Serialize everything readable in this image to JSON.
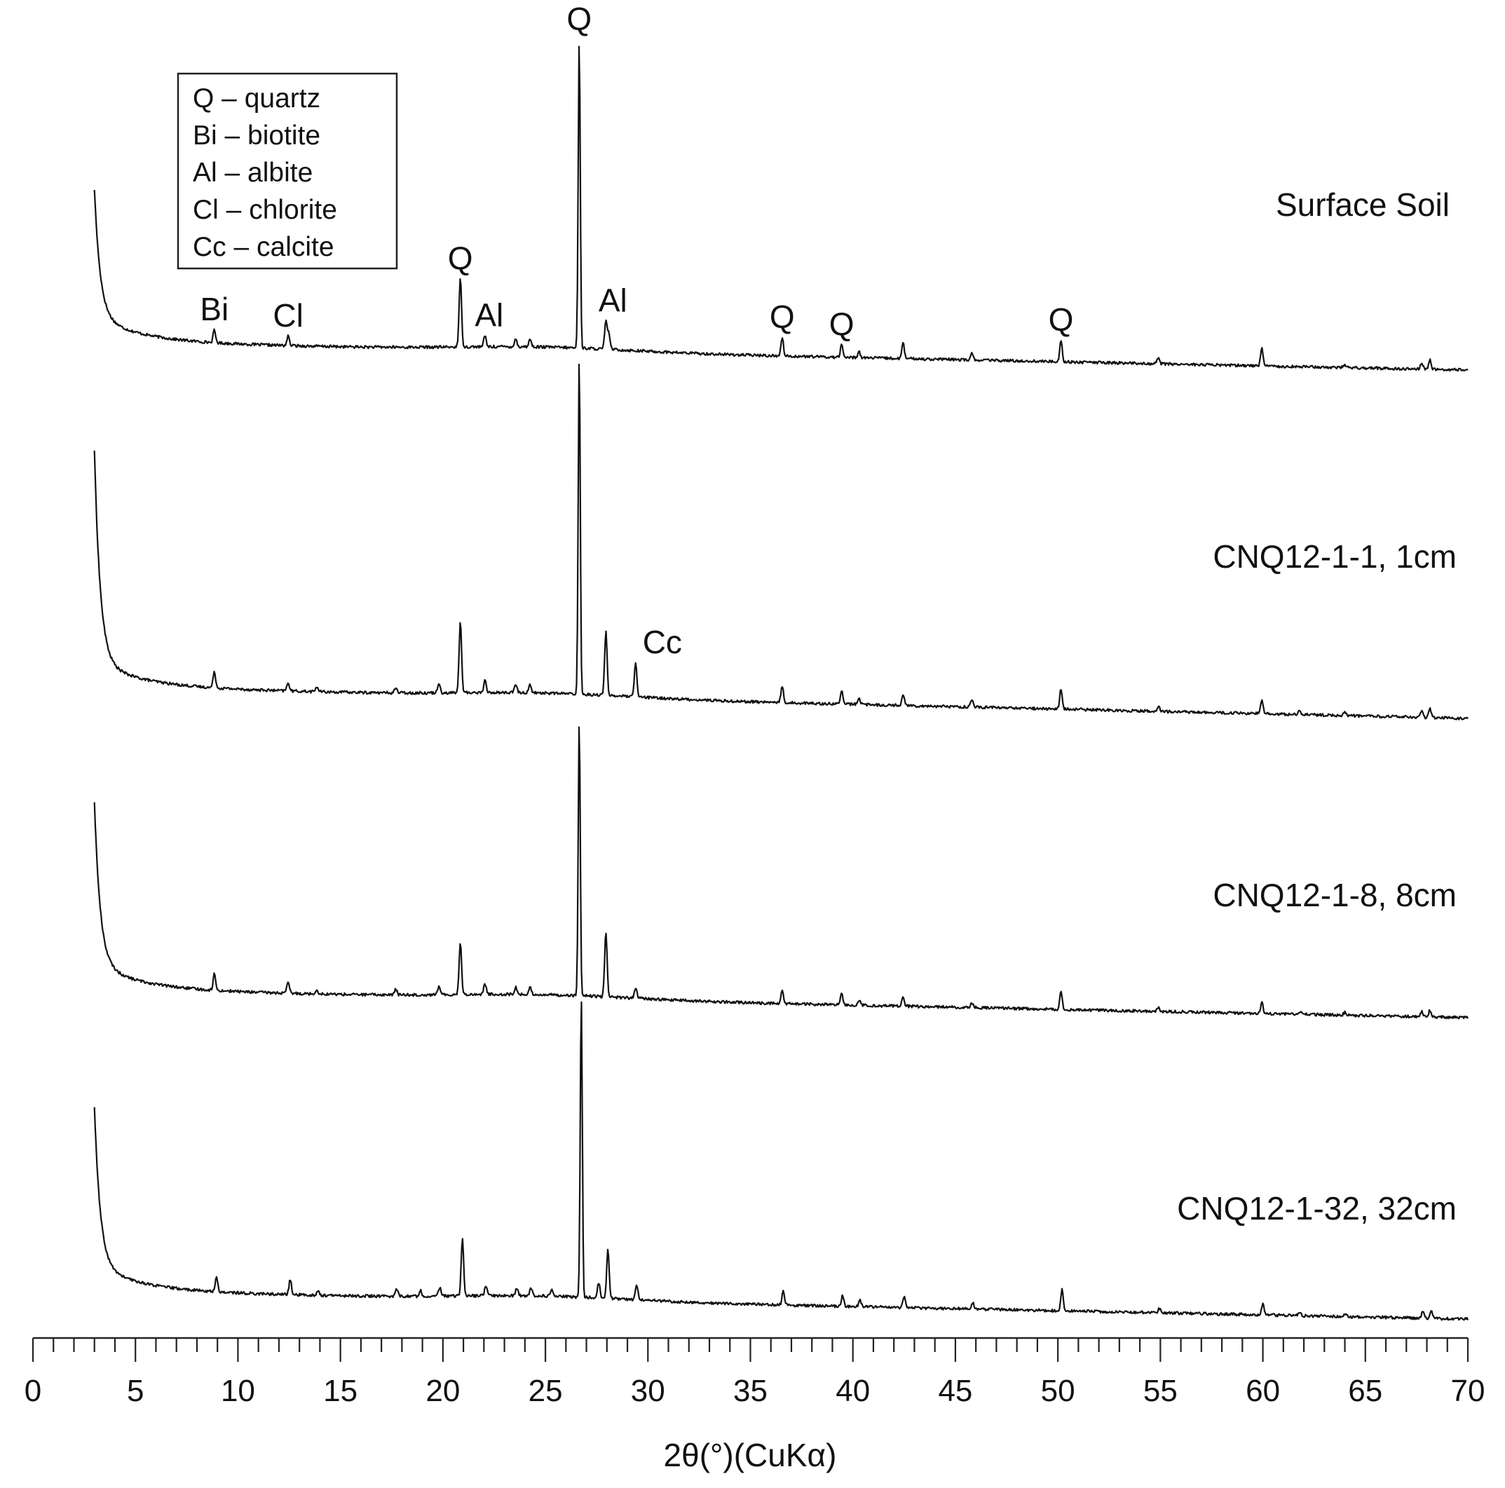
{
  "chart_data": {
    "type": "line",
    "title": "",
    "xlabel": "2θ(°)(CuKα)",
    "ylabel": "",
    "xlim": [
      0,
      70
    ],
    "x_ticks": [
      0,
      5,
      10,
      15,
      20,
      25,
      30,
      35,
      40,
      45,
      50,
      55,
      60,
      65,
      70
    ],
    "x_tick_labels": [
      "0",
      "5",
      "10",
      "15",
      "20",
      "25",
      "30",
      "35",
      "40",
      "45",
      "50",
      "55",
      "60",
      "65",
      "70"
    ],
    "minor_tick_step": 1,
    "grid": false,
    "legend": {
      "placement": "top-left",
      "entries": [
        "Q – quartz",
        "Bi – biotite",
        "Al – albite",
        "Cl – chlorite",
        "Cc – calcite"
      ]
    },
    "series": [
      {
        "name": "Surface Soil",
        "label": "Surface Soil",
        "peaks": [
          {
            "x": 26.65,
            "height": 100
          },
          {
            "x": 20.85,
            "height": 22
          },
          {
            "x": 27.95,
            "height": 9
          },
          {
            "x": 28.1,
            "height": 5
          },
          {
            "x": 8.85,
            "height": 4
          },
          {
            "x": 12.45,
            "height": 3
          },
          {
            "x": 22.05,
            "height": 3.5
          },
          {
            "x": 23.55,
            "height": 2.5
          },
          {
            "x": 24.25,
            "height": 2.5
          },
          {
            "x": 36.55,
            "height": 6
          },
          {
            "x": 39.45,
            "height": 4
          },
          {
            "x": 40.3,
            "height": 2
          },
          {
            "x": 42.45,
            "height": 5
          },
          {
            "x": 45.8,
            "height": 2
          },
          {
            "x": 50.15,
            "height": 7
          },
          {
            "x": 54.9,
            "height": 2
          },
          {
            "x": 59.95,
            "height": 6
          },
          {
            "x": 64.0,
            "height": 1
          },
          {
            "x": 67.75,
            "height": 2
          },
          {
            "x": 68.15,
            "height": 3
          }
        ],
        "annotations": [
          {
            "text": "Q",
            "x": 26.65
          },
          {
            "text": "Q",
            "x": 20.85
          },
          {
            "text": "Al",
            "x": 27.95
          },
          {
            "text": "Al",
            "x": 22.05
          },
          {
            "text": "Bi",
            "x": 8.85
          },
          {
            "text": "Cl",
            "x": 12.45
          },
          {
            "text": "Q",
            "x": 36.55
          },
          {
            "text": "Q",
            "x": 39.45
          },
          {
            "text": "Q",
            "x": 50.15
          }
        ]
      },
      {
        "name": "CNQ12-1-1, 1cm",
        "label": "CNQ12-1-1, 1cm",
        "peaks": [
          {
            "x": 26.65,
            "height": 100
          },
          {
            "x": 20.85,
            "height": 21
          },
          {
            "x": 27.95,
            "height": 19
          },
          {
            "x": 29.4,
            "height": 10
          },
          {
            "x": 8.85,
            "height": 5
          },
          {
            "x": 12.45,
            "height": 2.5
          },
          {
            "x": 13.85,
            "height": 1.5
          },
          {
            "x": 17.7,
            "height": 1.5
          },
          {
            "x": 19.8,
            "height": 3
          },
          {
            "x": 22.05,
            "height": 3.5
          },
          {
            "x": 23.55,
            "height": 2.5
          },
          {
            "x": 24.25,
            "height": 2.5
          },
          {
            "x": 36.55,
            "height": 5
          },
          {
            "x": 39.45,
            "height": 4
          },
          {
            "x": 40.3,
            "height": 2
          },
          {
            "x": 42.45,
            "height": 3.5
          },
          {
            "x": 45.8,
            "height": 2
          },
          {
            "x": 50.15,
            "height": 6
          },
          {
            "x": 54.9,
            "height": 1.5
          },
          {
            "x": 59.95,
            "height": 4
          },
          {
            "x": 61.8,
            "height": 1
          },
          {
            "x": 64.0,
            "height": 1
          },
          {
            "x": 67.75,
            "height": 2
          },
          {
            "x": 68.15,
            "height": 2.5
          }
        ],
        "annotations": [
          {
            "text": "Cc",
            "x": 29.4
          }
        ]
      },
      {
        "name": "CNQ12-1-8, 8cm",
        "label": "CNQ12-1-8, 8cm",
        "peaks": [
          {
            "x": 26.65,
            "height": 100
          },
          {
            "x": 20.85,
            "height": 19
          },
          {
            "x": 27.95,
            "height": 24
          },
          {
            "x": 29.4,
            "height": 4
          },
          {
            "x": 8.85,
            "height": 6
          },
          {
            "x": 12.45,
            "height": 4
          },
          {
            "x": 13.85,
            "height": 1.5
          },
          {
            "x": 17.7,
            "height": 2
          },
          {
            "x": 19.8,
            "height": 3
          },
          {
            "x": 22.05,
            "height": 4
          },
          {
            "x": 23.55,
            "height": 2.5
          },
          {
            "x": 24.25,
            "height": 2.5
          },
          {
            "x": 36.55,
            "height": 4.5
          },
          {
            "x": 39.45,
            "height": 4
          },
          {
            "x": 40.3,
            "height": 2
          },
          {
            "x": 42.45,
            "height": 3.5
          },
          {
            "x": 45.8,
            "height": 2
          },
          {
            "x": 50.15,
            "height": 7
          },
          {
            "x": 54.9,
            "height": 1.5
          },
          {
            "x": 59.95,
            "height": 4
          },
          {
            "x": 61.8,
            "height": 1
          },
          {
            "x": 64.0,
            "height": 1
          },
          {
            "x": 67.75,
            "height": 2
          },
          {
            "x": 68.15,
            "height": 2.5
          }
        ],
        "annotations": []
      },
      {
        "name": "CNQ12-1-32, 32cm",
        "label": "CNQ12-1-32, 32cm",
        "peaks": [
          {
            "x": 26.75,
            "height": 100
          },
          {
            "x": 20.95,
            "height": 19
          },
          {
            "x": 28.05,
            "height": 16
          },
          {
            "x": 27.6,
            "height": 5
          },
          {
            "x": 29.45,
            "height": 5
          },
          {
            "x": 8.95,
            "height": 5
          },
          {
            "x": 12.55,
            "height": 5
          },
          {
            "x": 13.9,
            "height": 1.5
          },
          {
            "x": 17.75,
            "height": 2.5
          },
          {
            "x": 18.9,
            "height": 2
          },
          {
            "x": 19.85,
            "height": 3
          },
          {
            "x": 22.1,
            "height": 3.5
          },
          {
            "x": 23.6,
            "height": 2.5
          },
          {
            "x": 24.3,
            "height": 2.5
          },
          {
            "x": 25.3,
            "height": 2
          },
          {
            "x": 36.6,
            "height": 4.5
          },
          {
            "x": 39.5,
            "height": 3.5
          },
          {
            "x": 40.35,
            "height": 2
          },
          {
            "x": 42.5,
            "height": 3.5
          },
          {
            "x": 45.85,
            "height": 2
          },
          {
            "x": 50.2,
            "height": 7
          },
          {
            "x": 54.95,
            "height": 1.5
          },
          {
            "x": 60.0,
            "height": 4
          },
          {
            "x": 61.8,
            "height": 1
          },
          {
            "x": 64.0,
            "height": 1
          },
          {
            "x": 67.8,
            "height": 2
          },
          {
            "x": 68.2,
            "height": 2.5
          }
        ],
        "annotations": []
      }
    ]
  }
}
